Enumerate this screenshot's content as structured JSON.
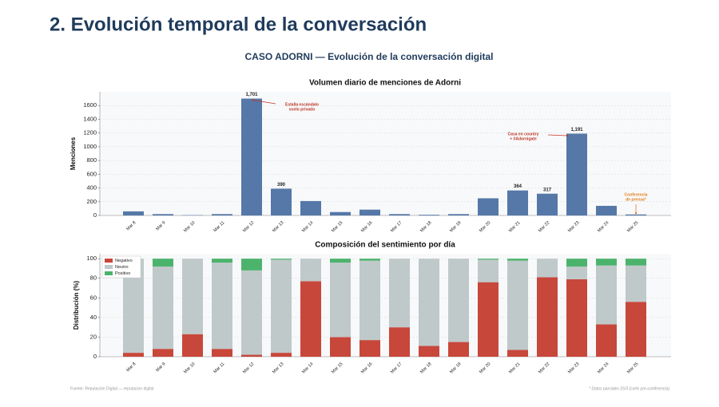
{
  "header": {
    "title": "2. Evolución temporal de la conversación",
    "subtitle": "CASO ADORNI — Evolución de la conversación digital"
  },
  "footer": {
    "source": "Fuente: Reputación Digital — reputacion digital",
    "note": "* Datos parciales 25/3 (corte pre-conferencia)"
  },
  "chart_data": [
    {
      "type": "bar",
      "title": "Volumen diario de menciones de Adorni",
      "y_label": "Menciones",
      "categories": [
        "Mar 8",
        "Mar 9",
        "Mar 10",
        "Mar 11",
        "Mar 12",
        "Mar 13",
        "Mar 14",
        "Mar 15",
        "Mar 16",
        "Mar 17",
        "Mar 18",
        "Mar 19",
        "Mar 20",
        "Mar 21",
        "Mar 22",
        "Mar 23",
        "Mar 24",
        "Mar 25"
      ],
      "values": [
        60,
        20,
        5,
        20,
        1701,
        390,
        210,
        50,
        85,
        20,
        10,
        20,
        250,
        364,
        317,
        1191,
        140,
        15
      ],
      "value_labels": [
        null,
        null,
        null,
        null,
        "1,701",
        "390",
        null,
        null,
        null,
        null,
        null,
        null,
        null,
        "364",
        "317",
        "1,191",
        null,
        null
      ],
      "color": "#5578a8",
      "ylim": [
        0,
        1800
      ],
      "yticks": [
        0,
        200,
        400,
        600,
        800,
        1000,
        1200,
        1400,
        1600
      ],
      "grid": true,
      "annotations": [
        {
          "lines": [
            "Estalla escándalo",
            "vuelo privado"
          ],
          "at": "Mar 12",
          "color": "#c0392b"
        },
        {
          "lines": [
            "Casa en country",
            "+ #Adornigate"
          ],
          "at": "Mar 23",
          "color": "#c0392b"
        },
        {
          "lines": [
            "Conferencia",
            "de prensa*"
          ],
          "at": "Mar 25",
          "color": "#e67e22"
        }
      ]
    },
    {
      "type": "stacked_bar",
      "title": "Composición del sentimiento por día",
      "y_label": "Distribución (%)",
      "categories": [
        "Mar 8",
        "Mar 9",
        "Mar 10",
        "Mar 11",
        "Mar 12",
        "Mar 13",
        "Mar 14",
        "Mar 15",
        "Mar 16",
        "Mar 17",
        "Mar 18",
        "Mar 19",
        "Mar 20",
        "Mar 21",
        "Mar 22",
        "Mar 23",
        "Mar 24",
        "Mar 25"
      ],
      "series": [
        {
          "name": "Negativo",
          "color": "#c8473b",
          "values": [
            4,
            8,
            23,
            8,
            2,
            4,
            77,
            20,
            17,
            30,
            11,
            15,
            76,
            7,
            81,
            79,
            33,
            56
          ]
        },
        {
          "name": "Neutro",
          "color": "#bfc9ca",
          "values": [
            96,
            84,
            77,
            88,
            86,
            95,
            23,
            76,
            81,
            70,
            89,
            85,
            23,
            91,
            19,
            13,
            60,
            37
          ]
        },
        {
          "name": "Positivo",
          "color": "#4cb36c",
          "values": [
            0,
            8,
            0,
            4,
            12,
            1,
            0,
            4,
            2,
            0,
            0,
            0,
            1,
            2,
            0,
            8,
            7,
            7
          ]
        }
      ],
      "ylim": [
        0,
        105
      ],
      "yticks": [
        0,
        20,
        40,
        60,
        80,
        100
      ],
      "grid": true,
      "legend": "upper-left"
    }
  ]
}
